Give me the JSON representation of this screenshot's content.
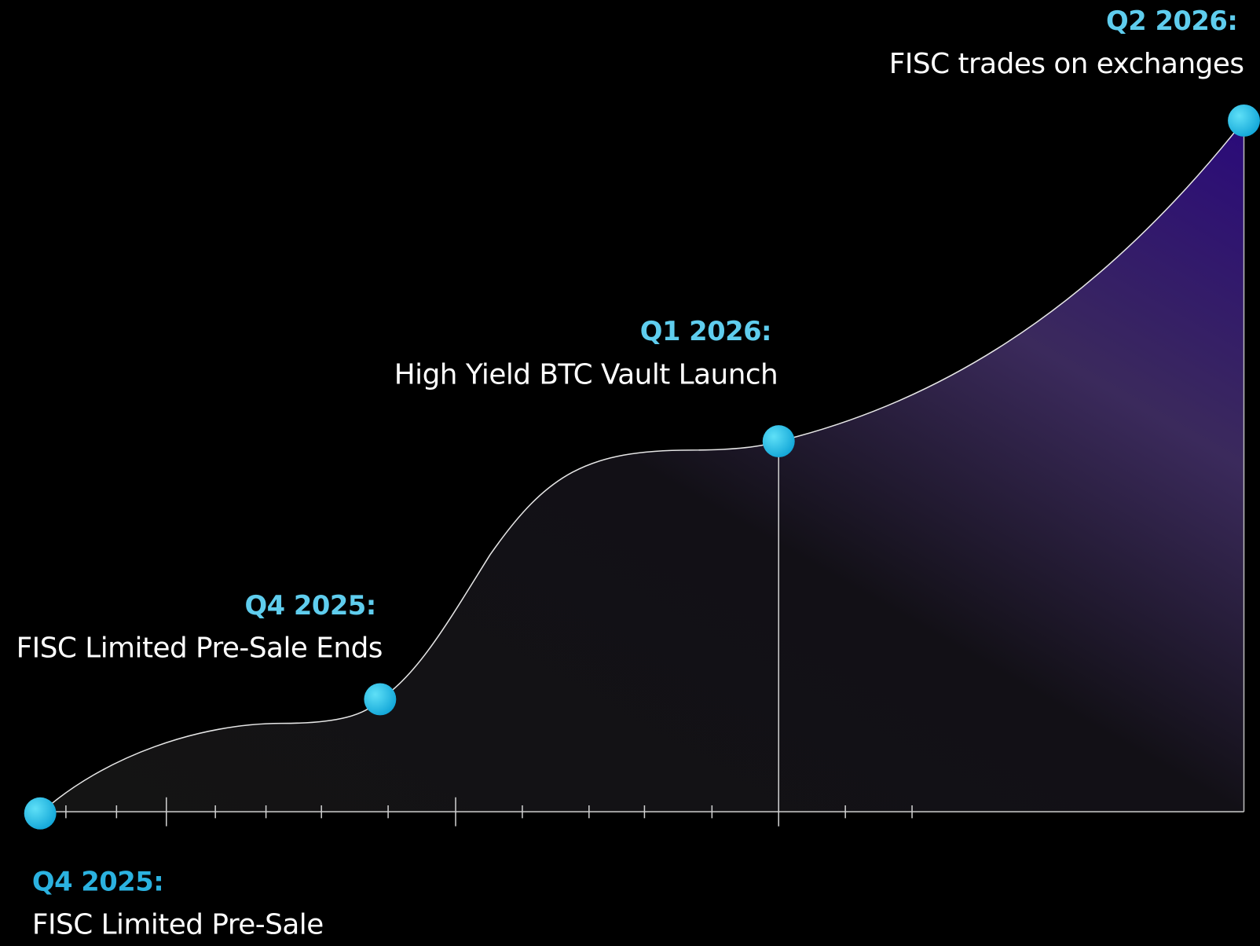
{
  "milestones": [
    {
      "period": "Q4 2025:",
      "title": "FISC Limited Pre-Sale"
    },
    {
      "period": "Q4 2025:",
      "title": "FISC Limited Pre-Sale Ends"
    },
    {
      "period": "Q1 2026:",
      "title": "High Yield BTC Vault Launch"
    },
    {
      "period": "Q2 2026:",
      "title": "FISC trades on exchanges"
    }
  ]
}
